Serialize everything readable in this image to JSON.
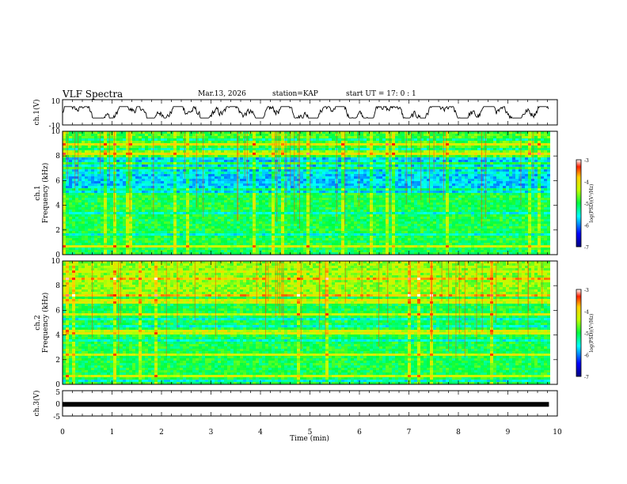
{
  "header": {
    "title": "VLF Spectra",
    "date": "Mar.13, 2026",
    "station": "station=KAP",
    "start_ut": "start  UT =   17: 0  : 1"
  },
  "chart_data": [
    {
      "type": "line",
      "title": "VLF Spectra",
      "ylabel": "ch.1(V)",
      "ylim": [
        -10,
        10
      ],
      "y_ticks": [
        "10",
        "-10"
      ],
      "xlim": [
        0,
        9.83
      ],
      "description_values": "noisy waveform oscillating roughly between -4 and +4 V",
      "color": "#000000"
    },
    {
      "type": "heatmap",
      "ylabel": "ch.1\nFrequency (kHz)",
      "ylabel_line1": "ch.1",
      "ylabel_line2": "Frequency (kHz)",
      "ylim": [
        0,
        10
      ],
      "y_ticks": [
        "0",
        "2",
        "4",
        "6",
        "8",
        "10"
      ],
      "colorbar": {
        "label": "log(PSD)(V²/Hz)",
        "range": [
          -7,
          -3
        ],
        "ticks": [
          "-3",
          "-4",
          "-5",
          "-6",
          "-7"
        ]
      }
    },
    {
      "type": "heatmap",
      "ylabel": "ch.2\nFrequency (kHz)",
      "ylabel_line1": "ch.2",
      "ylabel_line2": "Frequency (kHz)",
      "ylim": [
        0,
        10
      ],
      "y_ticks": [
        "0",
        "2",
        "4",
        "6",
        "8",
        "10"
      ],
      "colorbar": {
        "label": "log(PSD)(V²/Hz)",
        "range": [
          -7,
          -3
        ],
        "ticks": [
          "-3",
          "-4",
          "-5",
          "-6",
          "-7"
        ]
      }
    },
    {
      "type": "line",
      "ylabel": "ch.3(V)",
      "ylim": [
        -5,
        5
      ],
      "y_ticks": [
        "5",
        "0",
        "-5"
      ],
      "value": -0.4,
      "xlim": [
        0,
        9.83
      ],
      "color": "#000000"
    }
  ],
  "x_axis": {
    "label": "Time (min)",
    "range": [
      0,
      10
    ],
    "ticks": [
      "0",
      "1",
      "2",
      "3",
      "4",
      "5",
      "6",
      "7",
      "8",
      "9",
      "10"
    ]
  }
}
